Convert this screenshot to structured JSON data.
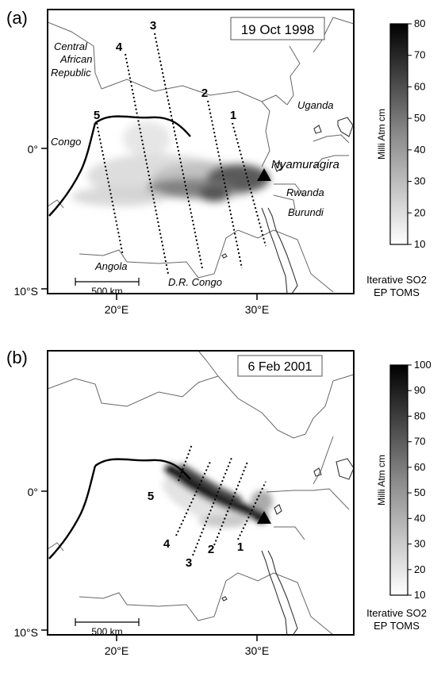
{
  "panels": [
    {
      "letter": "(a)",
      "date": "19 Oct 1998",
      "labels": {
        "central_african_republic": [
          "Central",
          "African",
          "Republic"
        ],
        "congo": "Congo",
        "uganda": "Uganda",
        "volcano": "Nyamuragira",
        "rwanda": "Rwanda",
        "burundi": "Burundi",
        "angola": "Angola",
        "drc": "D.R. Congo"
      },
      "track_numbers": [
        "1",
        "2",
        "3",
        "4",
        "5"
      ],
      "axes": {
        "y_ticks": [
          "0°",
          "10°S"
        ],
        "x_ticks": [
          "20°E",
          "30°E"
        ]
      },
      "scale_bar": "500 km",
      "colorbar": {
        "title": "Milli Atm cm",
        "ticks": [
          "10",
          "20",
          "30",
          "40",
          "50",
          "60",
          "70",
          "80"
        ],
        "min": 10,
        "max": 80,
        "caption": [
          "Iterative SO2",
          "EP TOMS"
        ]
      }
    },
    {
      "letter": "(b)",
      "date": "6 Feb 2001",
      "track_numbers": [
        "1",
        "2",
        "3",
        "4",
        "5"
      ],
      "axes": {
        "y_ticks": [
          "0°",
          "10°S"
        ],
        "x_ticks": [
          "20°E",
          "30°E"
        ]
      },
      "scale_bar": "500 km",
      "colorbar": {
        "title": "Milli Atm cm",
        "ticks": [
          "10",
          "20",
          "30",
          "40",
          "50",
          "60",
          "70",
          "80",
          "90",
          "100"
        ],
        "min": 10,
        "max": 100,
        "caption": [
          "Iterative SO2",
          "EP TOMS"
        ]
      }
    }
  ]
}
